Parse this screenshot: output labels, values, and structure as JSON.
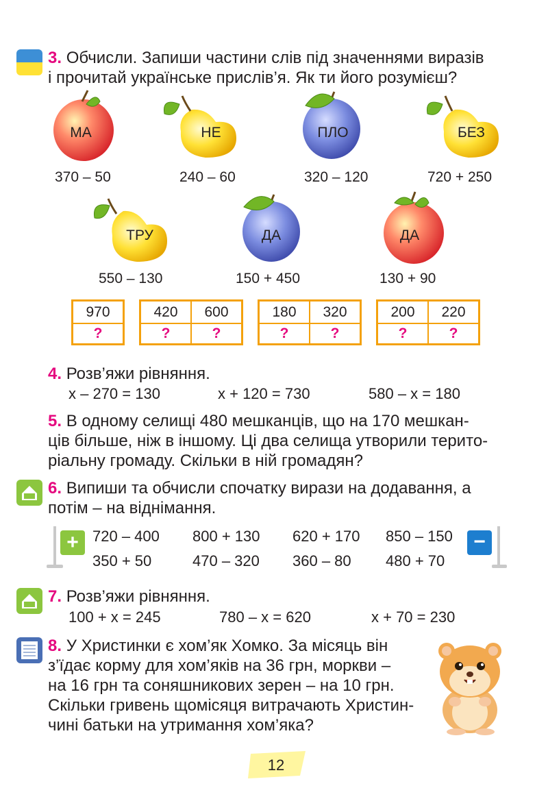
{
  "task3": {
    "number": "3.",
    "text_line1": "Обчисли. Запиши частини слів під значеннями виразів",
    "text_line2": "і прочитай українське прислів’я. Як ти його розумієш?",
    "fruits": [
      {
        "syllable": "МА",
        "expression": "370 – 50",
        "fruit": "apple"
      },
      {
        "syllable": "НЕ",
        "expression": "240 – 60",
        "fruit": "pear"
      },
      {
        "syllable": "ПЛО",
        "expression": "320 – 120",
        "fruit": "plum"
      },
      {
        "syllable": "БЕЗ",
        "expression": "720 + 250",
        "fruit": "pear"
      },
      {
        "syllable": "ТРУ",
        "expression": "550 – 130",
        "fruit": "pear"
      },
      {
        "syllable": "ДА",
        "expression": "150 + 450",
        "fruit": "plum"
      },
      {
        "syllable": "ДА",
        "expression": "130 + 90",
        "fruit": "apple"
      }
    ],
    "tables": [
      {
        "values": [
          "970"
        ],
        "marks": [
          "?"
        ]
      },
      {
        "values": [
          "420",
          "600"
        ],
        "marks": [
          "?",
          "?"
        ]
      },
      {
        "values": [
          "180",
          "320"
        ],
        "marks": [
          "?",
          "?"
        ]
      },
      {
        "values": [
          "200",
          "220"
        ],
        "marks": [
          "?",
          "?"
        ]
      }
    ]
  },
  "task4": {
    "number": "4.",
    "text": "Розв’яжи рівняння.",
    "equations": [
      "x – 270 = 130",
      "x + 120 = 730",
      "580 – x = 180"
    ]
  },
  "task5": {
    "number": "5.",
    "line1": "В одному селищі 480 мешканців, що на 170 мешкан-",
    "line2": "ців більше, ніж в іншому. Ці два селища утворили терито-",
    "line3": "ріальну громаду. Скільки в ній громадян?"
  },
  "task6": {
    "number": "6.",
    "line1": "Випиши та обчисли спочатку вирази на додавання, а",
    "line2": "потім – на віднімання.",
    "row1": [
      "720 – 400",
      "800 + 130",
      "620 + 170",
      "850 – 150"
    ],
    "row2": [
      "350 + 50",
      "470 – 320",
      "360 – 80",
      "480 + 70"
    ],
    "plus_sign": "+",
    "minus_sign": "−"
  },
  "task7": {
    "number": "7.",
    "text": "Розв’яжи рівняння.",
    "equations": [
      "100 + x = 245",
      "780 – x = 620",
      "x + 70 = 230"
    ]
  },
  "task8": {
    "number": "8.",
    "line1": "У Христинки є хом’як Хомко. За місяць він",
    "line2": "з’їдає корму для хом’яків на 36 грн, моркви –",
    "line3": "на 16 грн та соняшникових зерен – на 10 грн.",
    "line4": "Скільки гривень щомісяця витрачають Христин-",
    "line5": "чині батьки на утримання хом’яка?"
  },
  "page_number": "12",
  "colors": {
    "accent": "#e5097f",
    "table_border": "#f4a10c",
    "home_icon": "#8cc63f",
    "notebook_icon": "#4a6fb5",
    "flag_blue": "#3d8fd6",
    "flag_yellow": "#ffe135"
  }
}
